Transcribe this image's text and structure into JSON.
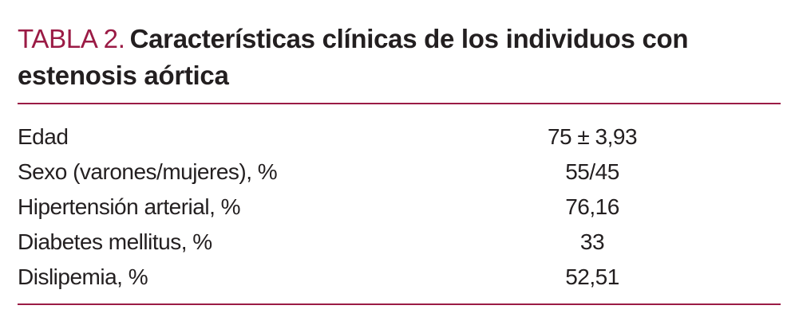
{
  "header": {
    "label": "TABLA 2.",
    "title": "Características clínicas de los individuos con estenosis aórtica"
  },
  "table": {
    "rows": [
      [
        "Edad",
        "75 ± 3,93"
      ],
      [
        "Sexo (varones/mujeres), %",
        "55/45"
      ],
      [
        "Hipertensión arterial, %",
        "76,16"
      ],
      [
        "Diabetes mellitus, %",
        "33"
      ],
      [
        "Dislipemia, %",
        "52,51"
      ]
    ]
  }
}
